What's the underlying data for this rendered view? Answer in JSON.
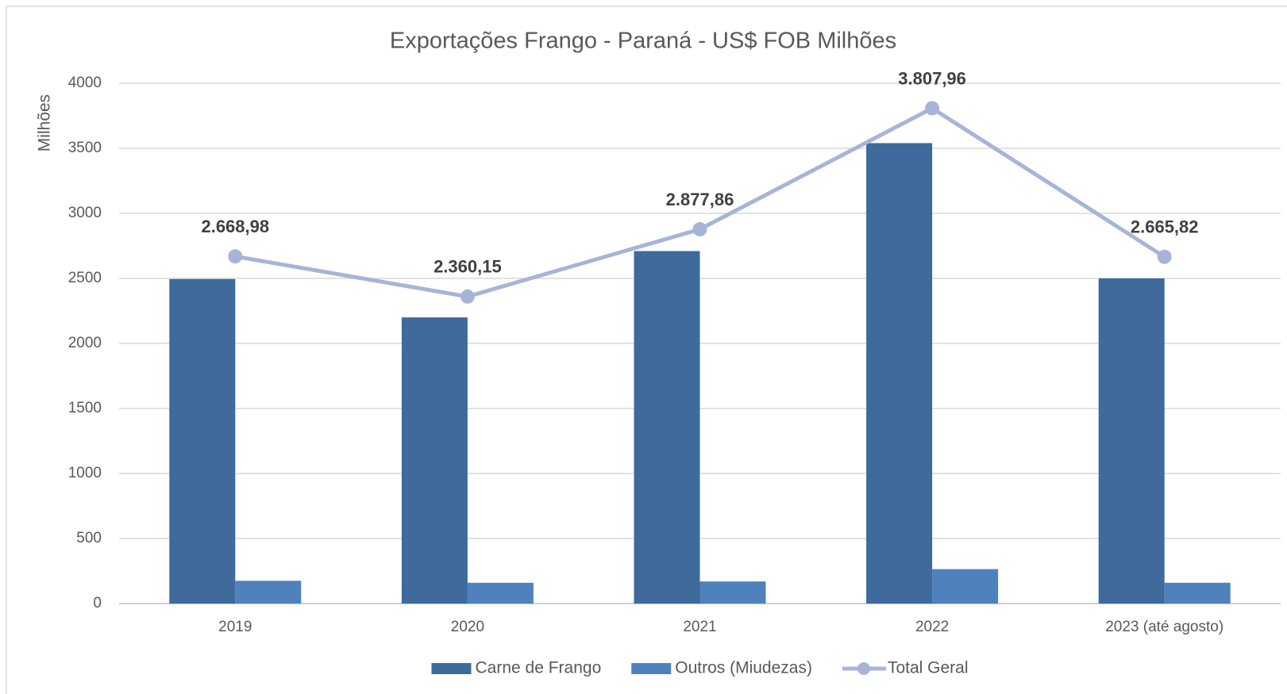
{
  "chart_data": {
    "type": "bar",
    "title": "Exportações Frango - Paraná - US$ FOB Milhões",
    "y_axis_label": "Milhões",
    "categories": [
      "2019",
      "2020",
      "2021",
      "2022",
      "2023 (até agosto)"
    ],
    "series": [
      {
        "name": "Carne de Frango",
        "type": "bar",
        "color": "#3e6a9c",
        "values": [
          2495,
          2200,
          2710,
          3540,
          2500
        ]
      },
      {
        "name": "Outros (Miudezas)",
        "type": "bar",
        "color": "#4f81bd",
        "values": [
          175,
          160,
          170,
          265,
          160
        ]
      },
      {
        "name": "Total Geral",
        "type": "line",
        "color": "#a6b5d7",
        "values": [
          2668.98,
          2360.15,
          2877.86,
          3807.96,
          2665.82
        ],
        "value_labels": [
          "2.668,98",
          "2.360,15",
          "2.877,86",
          "3.807,96",
          "2.665,82"
        ]
      }
    ],
    "ylim": [
      0,
      4000
    ],
    "yticks": [
      0,
      500,
      1000,
      1500,
      2000,
      2500,
      3000,
      3500,
      4000
    ],
    "grid": true,
    "legend": "bottom"
  }
}
